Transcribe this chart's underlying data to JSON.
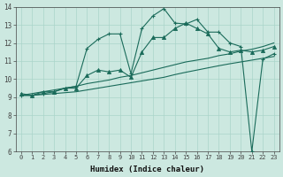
{
  "x": [
    0,
    1,
    2,
    3,
    4,
    5,
    6,
    7,
    8,
    9,
    10,
    11,
    12,
    13,
    14,
    15,
    16,
    17,
    18,
    19,
    20,
    21,
    22,
    23
  ],
  "line1": [
    9.1,
    9.1,
    9.2,
    9.3,
    9.5,
    9.6,
    11.7,
    12.2,
    12.5,
    12.5,
    10.3,
    12.8,
    13.5,
    13.9,
    13.1,
    13.05,
    13.3,
    12.6,
    12.6,
    12.0,
    11.8,
    6.0,
    11.1,
    11.4
  ],
  "line2": [
    9.2,
    9.1,
    9.3,
    9.3,
    9.5,
    9.5,
    10.2,
    10.5,
    10.4,
    10.5,
    10.1,
    11.5,
    12.3,
    12.3,
    12.8,
    13.1,
    12.8,
    12.5,
    11.7,
    11.5,
    11.6,
    11.5,
    11.6,
    11.8
  ],
  "line3": [
    9.1,
    9.2,
    9.3,
    9.4,
    9.5,
    9.6,
    9.75,
    9.85,
    9.95,
    10.1,
    10.2,
    10.35,
    10.5,
    10.65,
    10.8,
    10.95,
    11.05,
    11.15,
    11.3,
    11.4,
    11.55,
    11.65,
    11.8,
    12.0
  ],
  "line4": [
    9.1,
    9.1,
    9.15,
    9.2,
    9.25,
    9.3,
    9.4,
    9.5,
    9.6,
    9.7,
    9.8,
    9.9,
    10.0,
    10.1,
    10.25,
    10.38,
    10.5,
    10.62,
    10.74,
    10.85,
    10.95,
    11.05,
    11.15,
    11.25
  ],
  "main_color": "#1a6b5a",
  "bg_color": "#cce8e0",
  "grid_color": "#aad4ca",
  "xlabel": "Humidex (Indice chaleur)",
  "ylim": [
    6,
    14
  ],
  "xlim": [
    -0.5,
    23.5
  ],
  "yticks": [
    6,
    7,
    8,
    9,
    10,
    11,
    12,
    13,
    14
  ],
  "xticks": [
    0,
    1,
    2,
    3,
    4,
    5,
    6,
    7,
    8,
    9,
    10,
    11,
    12,
    13,
    14,
    15,
    16,
    17,
    18,
    19,
    20,
    21,
    22,
    23
  ]
}
